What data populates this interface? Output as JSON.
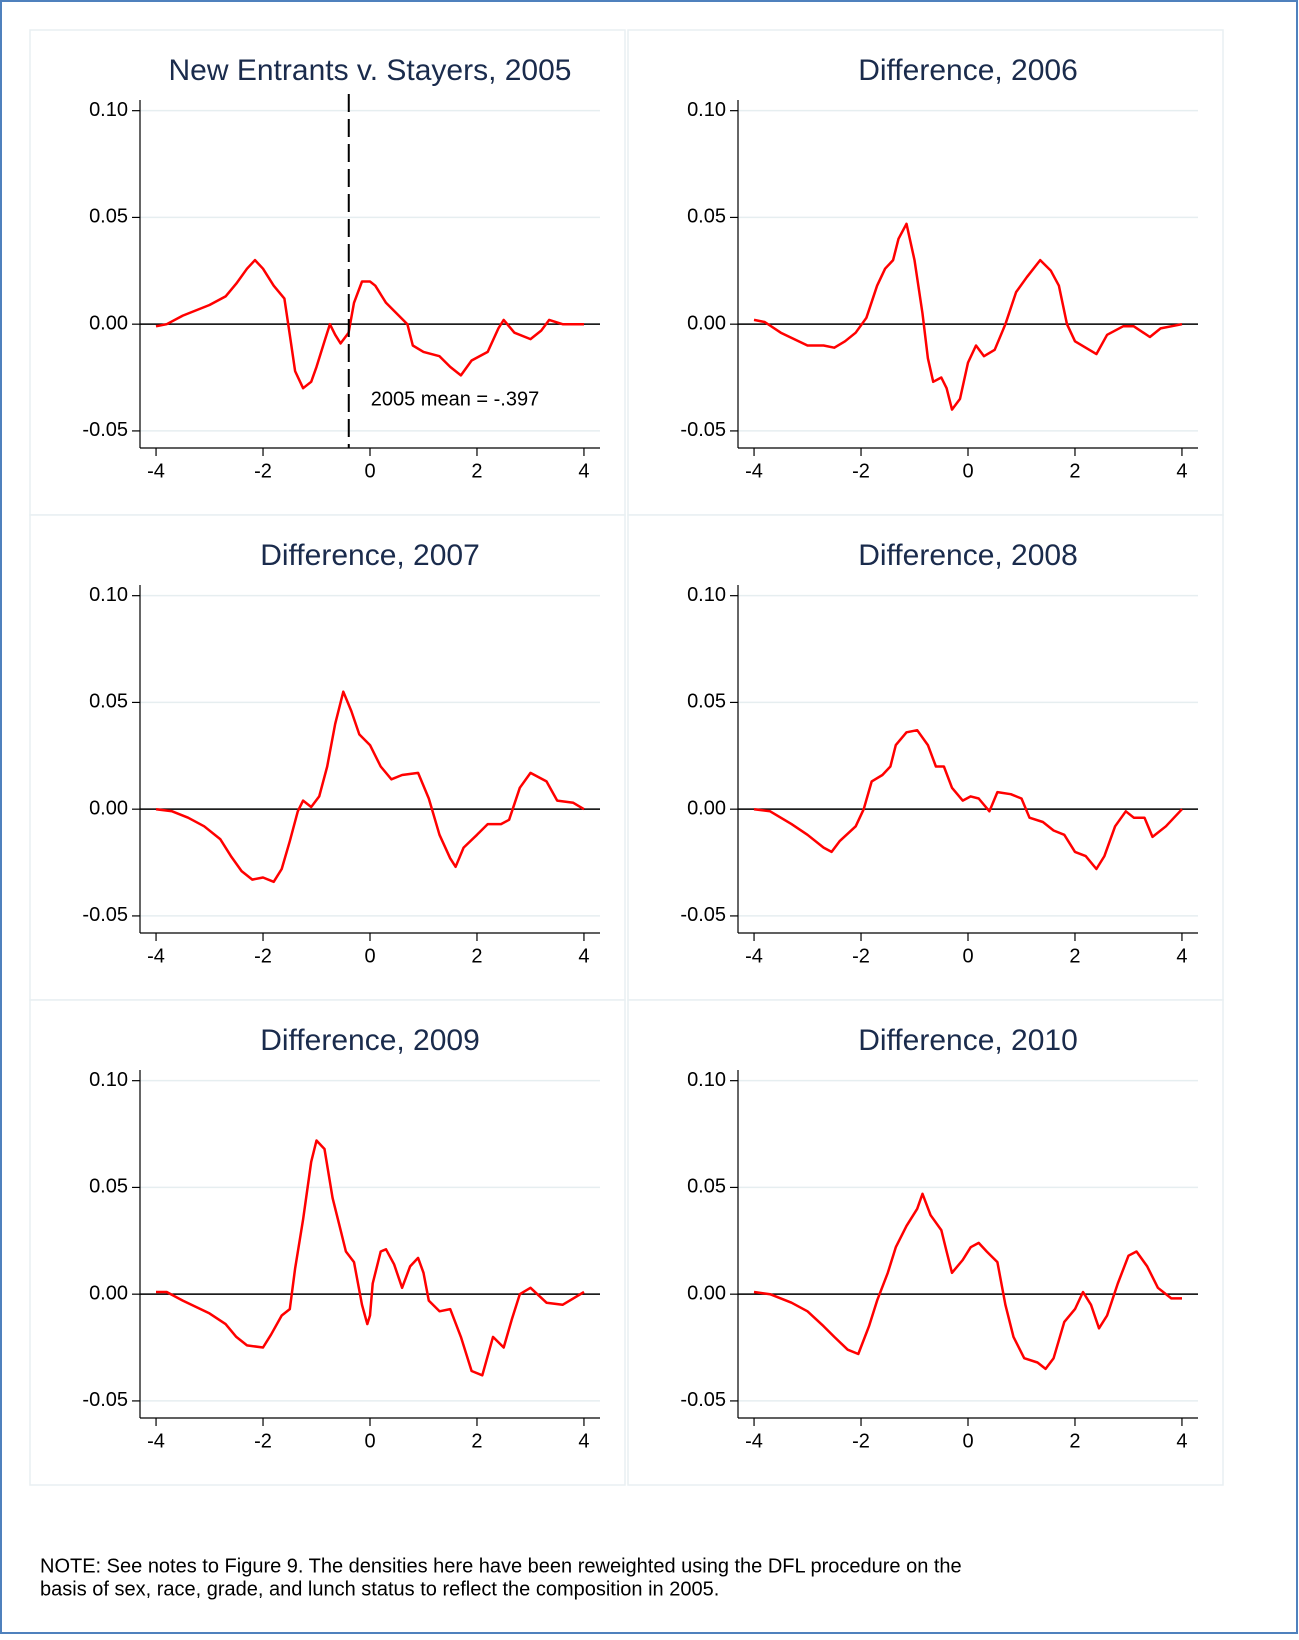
{
  "chart_data": [
    {
      "type": "line",
      "title": "New Entrants v. Stayers, 2005",
      "x": [
        -4,
        -3.8,
        -3.5,
        -3,
        -2.7,
        -2.5,
        -2.3,
        -2.15,
        -2,
        -1.8,
        -1.6,
        -1.5,
        -1.4,
        -1.25,
        -1.1,
        -1,
        -0.85,
        -0.75,
        -0.65,
        -0.55,
        -0.4,
        -0.3,
        -0.15,
        0,
        0.1,
        0.3,
        0.5,
        0.7,
        0.8,
        1,
        1.3,
        1.5,
        1.7,
        1.9,
        2.2,
        2.4,
        2.5,
        2.7,
        3,
        3.2,
        3.35,
        3.6,
        4
      ],
      "series": [
        {
          "color": "#ff0000",
          "values": [
            -0.001,
            0,
            0.004,
            0.009,
            0.013,
            0.019,
            0.026,
            0.03,
            0.026,
            0.018,
            0.012,
            -0.005,
            -0.022,
            -0.03,
            -0.027,
            -0.02,
            -0.008,
            0,
            -0.005,
            -0.009,
            -0.004,
            0.01,
            0.02,
            0.02,
            0.018,
            0.01,
            0.005,
            0,
            -0.01,
            -0.013,
            -0.015,
            -0.02,
            -0.024,
            -0.017,
            -0.013,
            -0.002,
            0.002,
            -0.004,
            -0.007,
            -0.003,
            0.002,
            0,
            0
          ]
        }
      ],
      "xlim": [
        -4.3,
        4.3
      ],
      "ylim": [
        -0.058,
        0.105
      ],
      "xticks": [
        -4,
        -2,
        0,
        2,
        4
      ],
      "yticks": [
        {
          "value": 0.1,
          "label": "0.10"
        },
        0.05,
        {
          "value": 0,
          "label": "0.00"
        },
        -0.05
      ],
      "grid": true,
      "hline": 0,
      "vline": -0.397,
      "annotation": "2005 mean = -.397"
    },
    {
      "type": "line",
      "title": "Difference, 2006",
      "x": [
        -4,
        -3.8,
        -3.5,
        -3,
        -2.7,
        -2.5,
        -2.3,
        -2.1,
        -1.9,
        -1.7,
        -1.55,
        -1.4,
        -1.3,
        -1.15,
        -1,
        -0.85,
        -0.75,
        -0.65,
        -0.5,
        -0.4,
        -0.3,
        -0.15,
        0,
        0.15,
        0.3,
        0.5,
        0.7,
        0.9,
        1.1,
        1.35,
        1.55,
        1.7,
        1.85,
        2,
        2.2,
        2.4,
        2.6,
        2.9,
        3.1,
        3.4,
        3.6,
        4
      ],
      "series": [
        {
          "color": "#ff0000",
          "values": [
            0.002,
            0.001,
            -0.004,
            -0.01,
            -0.01,
            -0.011,
            -0.008,
            -0.004,
            0.003,
            0.018,
            0.026,
            0.03,
            0.04,
            0.047,
            0.03,
            0.005,
            -0.016,
            -0.027,
            -0.025,
            -0.03,
            -0.04,
            -0.035,
            -0.018,
            -0.01,
            -0.015,
            -0.012,
            0,
            0.015,
            0.022,
            0.03,
            0.025,
            0.018,
            0,
            -0.008,
            -0.011,
            -0.014,
            -0.005,
            -0.001,
            -0.001,
            -0.006,
            -0.002,
            0
          ]
        }
      ],
      "xlim": [
        -4.3,
        4.3
      ],
      "ylim": [
        -0.058,
        0.105
      ],
      "xticks": [
        -4,
        -2,
        0,
        2,
        4
      ],
      "yticks": [
        {
          "value": 0.1,
          "label": "0.10"
        },
        0.05,
        {
          "value": 0,
          "label": "0.00"
        },
        -0.05
      ],
      "grid": true,
      "hline": 0
    },
    {
      "type": "line",
      "title": "Difference, 2007",
      "x": [
        -4,
        -3.7,
        -3.4,
        -3.1,
        -2.8,
        -2.6,
        -2.4,
        -2.2,
        -2,
        -1.8,
        -1.65,
        -1.5,
        -1.35,
        -1.25,
        -1.1,
        -0.95,
        -0.8,
        -0.65,
        -0.5,
        -0.35,
        -0.2,
        0,
        0.2,
        0.4,
        0.6,
        0.9,
        1.1,
        1.3,
        1.5,
        1.6,
        1.75,
        2,
        2.2,
        2.45,
        2.6,
        2.8,
        3,
        3.3,
        3.5,
        3.8,
        4
      ],
      "series": [
        {
          "color": "#ff0000",
          "values": [
            0,
            -0.001,
            -0.004,
            -0.008,
            -0.014,
            -0.022,
            -0.029,
            -0.033,
            -0.032,
            -0.034,
            -0.028,
            -0.015,
            -0.001,
            0.004,
            0.001,
            0.006,
            0.02,
            0.04,
            0.055,
            0.046,
            0.035,
            0.03,
            0.02,
            0.014,
            0.016,
            0.017,
            0.005,
            -0.012,
            -0.023,
            -0.027,
            -0.018,
            -0.012,
            -0.007,
            -0.007,
            -0.005,
            0.01,
            0.017,
            0.013,
            0.004,
            0.003,
            0
          ]
        }
      ],
      "xlim": [
        -4.3,
        4.3
      ],
      "ylim": [
        -0.058,
        0.105
      ],
      "xticks": [
        -4,
        -2,
        0,
        2,
        4
      ],
      "yticks": [
        {
          "value": 0.1,
          "label": "0.10"
        },
        0.05,
        {
          "value": 0,
          "label": "0.00"
        },
        -0.05
      ],
      "grid": true,
      "hline": 0
    },
    {
      "type": "line",
      "title": "Difference, 2008",
      "x": [
        -4,
        -3.7,
        -3.3,
        -3,
        -2.7,
        -2.55,
        -2.4,
        -2.1,
        -1.95,
        -1.8,
        -1.6,
        -1.45,
        -1.35,
        -1.15,
        -0.95,
        -0.75,
        -0.6,
        -0.45,
        -0.3,
        -0.1,
        0.05,
        0.2,
        0.4,
        0.55,
        0.8,
        1,
        1.15,
        1.4,
        1.6,
        1.8,
        2,
        2.2,
        2.4,
        2.55,
        2.75,
        2.95,
        3.1,
        3.3,
        3.45,
        3.7,
        4
      ],
      "series": [
        {
          "color": "#ff0000",
          "values": [
            0,
            -0.001,
            -0.007,
            -0.012,
            -0.018,
            -0.02,
            -0.015,
            -0.008,
            0,
            0.013,
            0.016,
            0.02,
            0.03,
            0.036,
            0.037,
            0.03,
            0.02,
            0.02,
            0.01,
            0.004,
            0.006,
            0.005,
            -0.001,
            0.008,
            0.007,
            0.005,
            -0.004,
            -0.006,
            -0.01,
            -0.012,
            -0.02,
            -0.022,
            -0.028,
            -0.022,
            -0.008,
            -0.001,
            -0.004,
            -0.004,
            -0.013,
            -0.008,
            0
          ]
        }
      ],
      "xlim": [
        -4.3,
        4.3
      ],
      "ylim": [
        -0.058,
        0.105
      ],
      "xticks": [
        -4,
        -2,
        0,
        2,
        4
      ],
      "yticks": [
        {
          "value": 0.1,
          "label": "0.10"
        },
        0.05,
        {
          "value": 0,
          "label": "0.00"
        },
        -0.05
      ],
      "grid": true,
      "hline": 0
    },
    {
      "type": "line",
      "title": "Difference, 2009",
      "x": [
        -4,
        -3.8,
        -3.5,
        -3,
        -2.7,
        -2.5,
        -2.3,
        -2,
        -1.85,
        -1.65,
        -1.5,
        -1.4,
        -1.25,
        -1.1,
        -1,
        -0.85,
        -0.7,
        -0.55,
        -0.45,
        -0.3,
        -0.15,
        -0.05,
        0,
        0.05,
        0.2,
        0.3,
        0.45,
        0.6,
        0.75,
        0.9,
        1,
        1.1,
        1.3,
        1.5,
        1.7,
        1.9,
        2.1,
        2.3,
        2.5,
        2.65,
        2.8,
        3,
        3.3,
        3.6,
        3.8,
        4
      ],
      "series": [
        {
          "color": "#ff0000",
          "values": [
            0.001,
            0.001,
            -0.003,
            -0.009,
            -0.014,
            -0.02,
            -0.024,
            -0.025,
            -0.019,
            -0.01,
            -0.007,
            0.012,
            0.035,
            0.062,
            0.072,
            0.068,
            0.045,
            0.03,
            0.02,
            0.015,
            -0.005,
            -0.014,
            -0.01,
            0.005,
            0.02,
            0.021,
            0.014,
            0.003,
            0.013,
            0.017,
            0.01,
            -0.003,
            -0.008,
            -0.007,
            -0.02,
            -0.036,
            -0.038,
            -0.02,
            -0.025,
            -0.012,
            0,
            0.003,
            -0.004,
            -0.005,
            -0.002,
            0.001
          ]
        }
      ],
      "xlim": [
        -4.3,
        4.3
      ],
      "ylim": [
        -0.058,
        0.105
      ],
      "xticks": [
        -4,
        -2,
        0,
        2,
        4
      ],
      "yticks": [
        {
          "value": 0.1,
          "label": "0.10"
        },
        0.05,
        {
          "value": 0,
          "label": "0.00"
        },
        -0.05
      ],
      "grid": true,
      "hline": 0
    },
    {
      "type": "line",
      "title": "Difference, 2010",
      "x": [
        -4,
        -3.7,
        -3.3,
        -3,
        -2.7,
        -2.5,
        -2.25,
        -2.05,
        -1.85,
        -1.7,
        -1.5,
        -1.35,
        -1.15,
        -0.95,
        -0.85,
        -0.7,
        -0.5,
        -0.4,
        -0.3,
        -0.1,
        0.05,
        0.2,
        0.35,
        0.55,
        0.7,
        0.85,
        1.05,
        1.3,
        1.45,
        1.6,
        1.8,
        2,
        2.15,
        2.3,
        2.45,
        2.6,
        2.8,
        3,
        3.15,
        3.35,
        3.55,
        3.8,
        4
      ],
      "series": [
        {
          "color": "#ff0000",
          "values": [
            0.001,
            0,
            -0.004,
            -0.008,
            -0.015,
            -0.02,
            -0.026,
            -0.028,
            -0.015,
            -0.003,
            0.01,
            0.022,
            0.032,
            0.04,
            0.047,
            0.037,
            0.03,
            0.02,
            0.01,
            0.016,
            0.022,
            0.024,
            0.02,
            0.015,
            -0.005,
            -0.02,
            -0.03,
            -0.032,
            -0.035,
            -0.03,
            -0.013,
            -0.007,
            0.001,
            -0.005,
            -0.016,
            -0.01,
            0.005,
            0.018,
            0.02,
            0.013,
            0.003,
            -0.002,
            -0.002
          ]
        }
      ],
      "xlim": [
        -4.3,
        4.3
      ],
      "ylim": [
        -0.058,
        0.105
      ],
      "xticks": [
        -4,
        -2,
        0,
        2,
        4
      ],
      "yticks": [
        {
          "value": 0.1,
          "label": "0.10"
        },
        0.05,
        {
          "value": 0,
          "label": "0.00"
        },
        -0.05
      ],
      "grid": true,
      "hline": 0
    }
  ],
  "note": [
    "NOTE: See notes to Figure 9. The densities here have been reweighted using the DFL procedure on the",
    "basis of sex, race, grade, and lunch status to reflect the composition in 2005."
  ]
}
